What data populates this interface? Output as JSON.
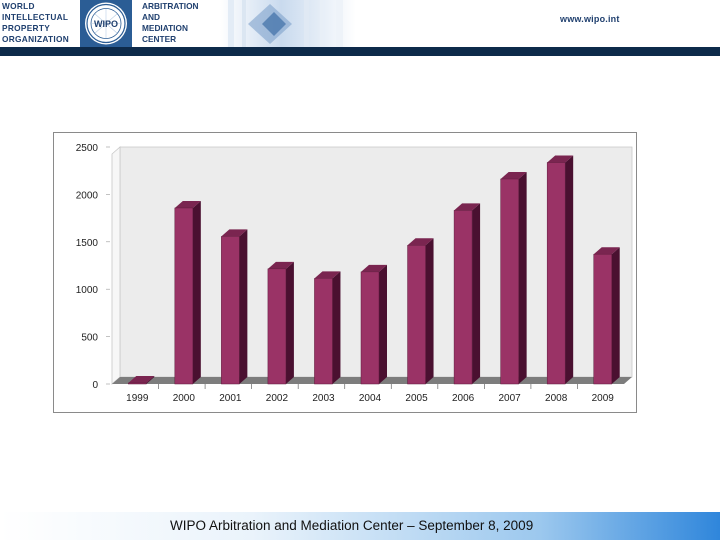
{
  "header": {
    "org_lines": [
      "WORLD",
      "INTELLECTUAL",
      "PROPERTY",
      "ORGANIZATION"
    ],
    "center_lines": [
      "ARBITRATION",
      "AND",
      "MEDIATION",
      "CENTER"
    ],
    "seal_label": "WIPO",
    "website": "www.wipo.int"
  },
  "footer": {
    "text": "WIPO Arbitration and Mediation Center – September 8, 2009"
  },
  "colors": {
    "bar_front": "#9a3366",
    "bar_side": "#4a1030",
    "bar_top": "#7a2550",
    "wall": "#ececec",
    "floor": "#7d7d7d",
    "header_bar": "#0d2a4a",
    "footer_accent": "#2f86db"
  },
  "chart_data": {
    "type": "bar",
    "categories": [
      "1999",
      "2000",
      "2001",
      "2002",
      "2003",
      "2004",
      "2005",
      "2006",
      "2007",
      "2008",
      "2009"
    ],
    "values": [
      5,
      1857,
      1557,
      1215,
      1114,
      1183,
      1463,
      1831,
      2162,
      2336,
      1369
    ],
    "yticks": [
      "0",
      "500",
      "1000",
      "1500",
      "2000",
      "2500"
    ],
    "ylim": [
      0,
      2500
    ],
    "title": "",
    "xlabel": "",
    "ylabel": "",
    "grid": false,
    "legend": "none"
  }
}
